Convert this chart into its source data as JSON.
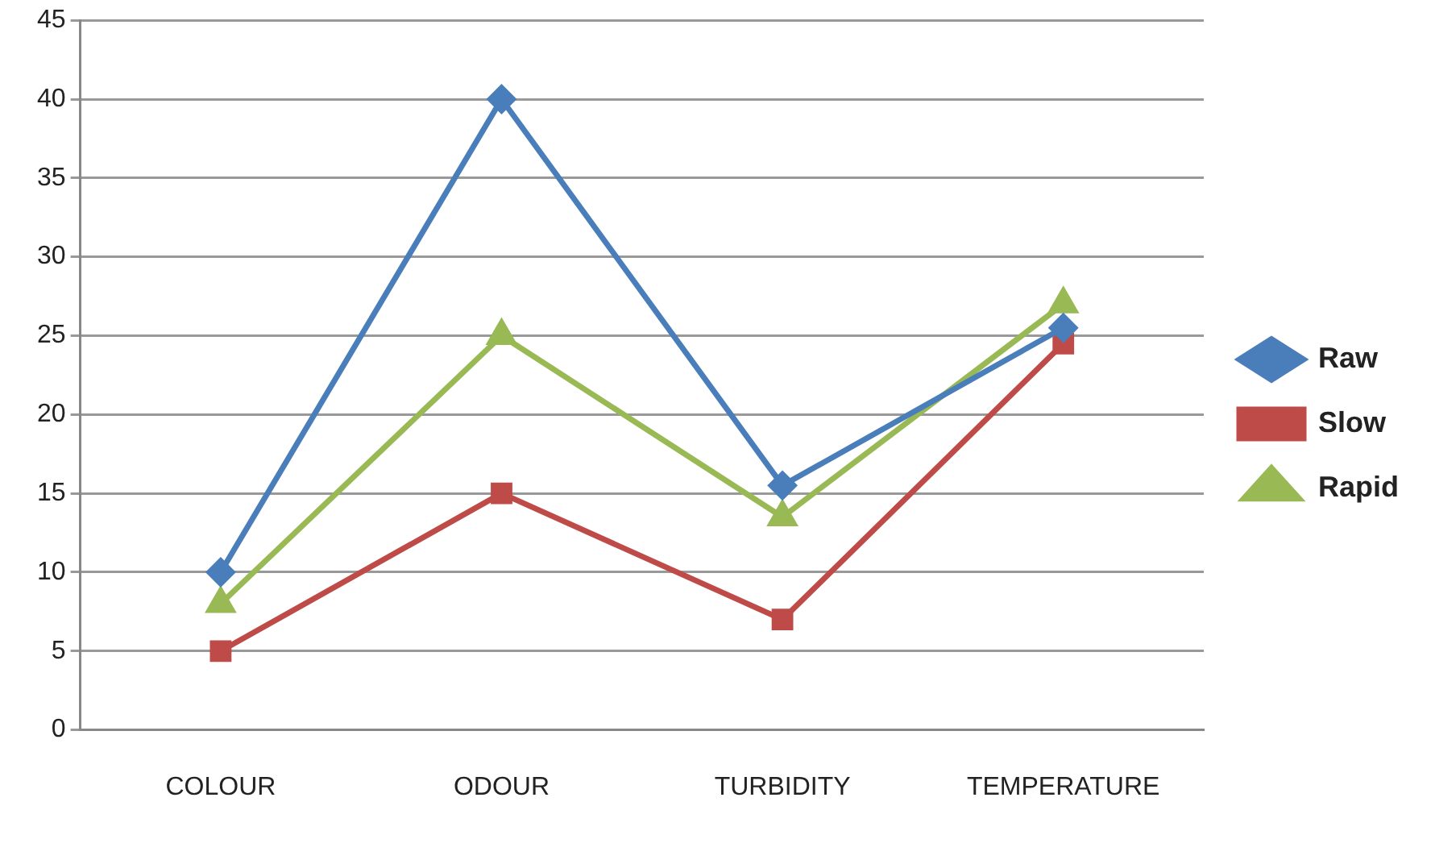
{
  "chart_data": {
    "type": "line",
    "categories": [
      "COLOUR",
      "ODOUR",
      "TURBIDITY",
      "TEMPERATURE"
    ],
    "series": [
      {
        "name": "Raw",
        "color": "#4a7ebb",
        "marker": "diamond",
        "values": [
          10,
          40,
          15.5,
          25.5
        ]
      },
      {
        "name": "Slow",
        "color": "#be4b48",
        "marker": "square",
        "values": [
          5,
          15,
          7,
          24.5
        ]
      },
      {
        "name": "Rapid",
        "color": "#98b954",
        "marker": "triangle",
        "values": [
          8,
          25,
          13.5,
          27
        ]
      }
    ],
    "ylim": [
      0,
      45
    ],
    "yticks": [
      0,
      5,
      10,
      15,
      20,
      25,
      30,
      35,
      40,
      45
    ],
    "grid": "y",
    "legend": "right"
  }
}
